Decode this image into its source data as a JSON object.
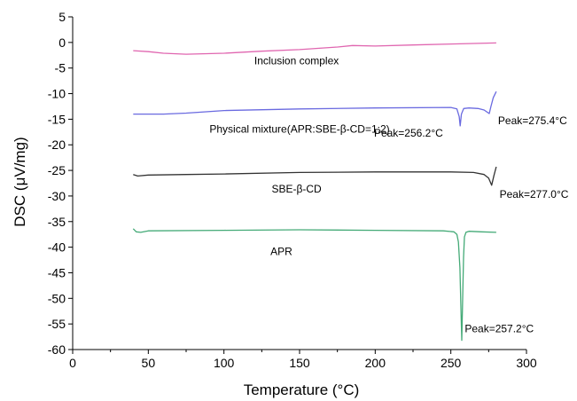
{
  "chart_data": {
    "type": "line",
    "xlabel": "Temperature (°C)",
    "ylabel": "DSC (μV/mg)",
    "xlim": [
      0,
      300
    ],
    "ylim": [
      -60,
      5
    ],
    "xticks": [
      "0",
      "50",
      "100",
      "150",
      "200",
      "250",
      "300"
    ],
    "yticks": [
      "5",
      "0",
      "-5",
      "-10",
      "-15",
      "-20",
      "-25",
      "-30",
      "-35",
      "-40",
      "-45",
      "-50",
      "-55",
      "-60"
    ],
    "grid": false,
    "series": [
      {
        "name": "Inclusion complex",
        "color": "#e066b0",
        "x": [
          40,
          50,
          60,
          75,
          100,
          125,
          150,
          175,
          185,
          200,
          225,
          250,
          265,
          280
        ],
        "y": [
          -1.6,
          -1.8,
          -2.1,
          -2.3,
          -2.1,
          -1.7,
          -1.4,
          -0.9,
          -0.6,
          -0.7,
          -0.5,
          -0.3,
          -0.2,
          -0.1
        ]
      },
      {
        "name": "Physical mixture(APR:SBE-β-CD=1:2)",
        "color": "#6a6ae0",
        "x": [
          40,
          60,
          75,
          100,
          150,
          200,
          250,
          254,
          255.5,
          256.2,
          257,
          258.5,
          262,
          268,
          272,
          275.4,
          276.5,
          278,
          280
        ],
        "y": [
          -14.0,
          -14.0,
          -13.8,
          -13.3,
          -13.0,
          -12.8,
          -12.7,
          -13.0,
          -14.5,
          -16.3,
          -14.0,
          -12.9,
          -12.8,
          -12.9,
          -13.2,
          -13.9,
          -12.5,
          -10.8,
          -9.6
        ]
      },
      {
        "name": "SBE-β-CD",
        "color": "#333333",
        "x": [
          40,
          43,
          50,
          75,
          100,
          150,
          200,
          250,
          265,
          272,
          275,
          277,
          278.5,
          280
        ],
        "y": [
          -25.8,
          -26.1,
          -25.9,
          -25.8,
          -25.7,
          -25.4,
          -25.3,
          -25.3,
          -25.4,
          -25.8,
          -26.5,
          -27.9,
          -26.0,
          -24.3
        ]
      },
      {
        "name": "APR",
        "color": "#44aa77",
        "x": [
          40,
          42,
          45,
          50,
          100,
          150,
          200,
          245,
          252,
          254,
          255,
          256,
          256.6,
          257.2,
          257.8,
          258.4,
          259,
          260,
          262,
          270,
          280
        ],
        "y": [
          -36.4,
          -37.0,
          -37.1,
          -36.8,
          -36.7,
          -36.6,
          -36.7,
          -36.8,
          -37.0,
          -37.5,
          -39.0,
          -44.0,
          -51.0,
          -58.2,
          -50.0,
          -42.0,
          -38.0,
          -37.1,
          -36.9,
          -37.0,
          -37.1
        ]
      }
    ],
    "annotations": [
      {
        "text": "Inclusion complex",
        "x": 148,
        "y": -4.3
      },
      {
        "text": "Physical mixture(APR:SBE-β-CD=1:2)",
        "x": 150,
        "y": -17.6
      },
      {
        "text": "Peak=256.2°C",
        "x": 222,
        "y": -18.4
      },
      {
        "text": "Peak=275.4°C",
        "x": 304,
        "y": -16.0
      },
      {
        "text": "SBE-β-CD",
        "x": 148,
        "y": -29.3
      },
      {
        "text": "Peak=277.0°C",
        "x": 305,
        "y": -30.4
      },
      {
        "text": "APR",
        "x": 138,
        "y": -41.5
      },
      {
        "text": "Peak=257.2°C",
        "x": 282,
        "y": -56.6
      }
    ]
  }
}
